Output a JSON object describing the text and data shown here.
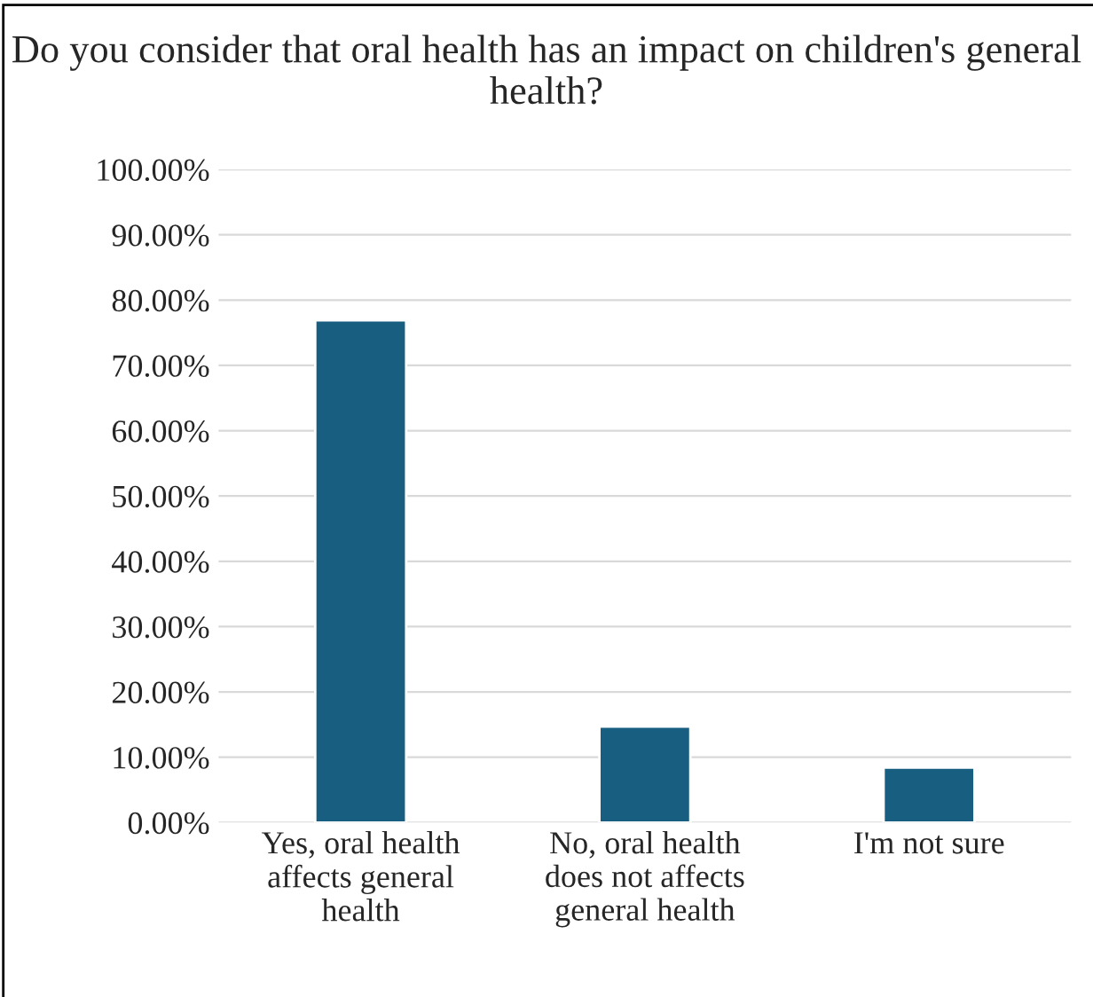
{
  "chart_data": {
    "type": "bar",
    "title": "Do you consider that oral health has an impact on children's general health?",
    "categories": [
      "Yes, oral health affects general health",
      "No, oral health does not affects general health",
      "I'm not sure"
    ],
    "values": [
      76.9,
      14.7,
      8.4
    ],
    "color": "#175e80",
    "ylim": [
      0,
      100
    ],
    "yticks": [
      {
        "value": 0,
        "label": "0.00%"
      },
      {
        "value": 10,
        "label": "10.00%"
      },
      {
        "value": 20,
        "label": "20.00%"
      },
      {
        "value": 30,
        "label": "30.00%"
      },
      {
        "value": 40,
        "label": "40.00%"
      },
      {
        "value": 50,
        "label": "50.00%"
      },
      {
        "value": 60,
        "label": "60.00%"
      },
      {
        "value": 70,
        "label": "70.00%"
      },
      {
        "value": 80,
        "label": "80.00%"
      },
      {
        "value": 90,
        "label": "90.00%"
      },
      {
        "value": 100,
        "label": "100.00%"
      }
    ],
    "grid": "y"
  }
}
